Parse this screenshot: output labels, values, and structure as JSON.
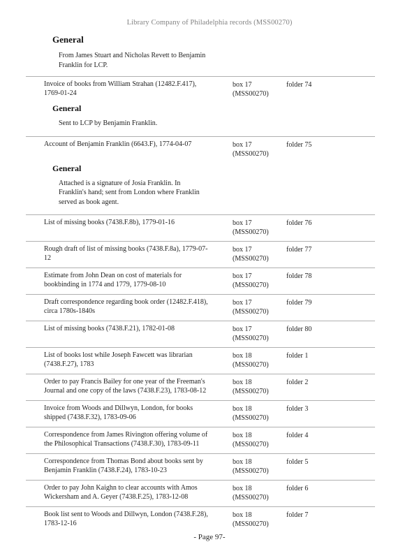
{
  "page": {
    "header": "Library Company of Philadelphia records (MSS00270)",
    "footer": "- Page 97-"
  },
  "top_section": {
    "heading": "General",
    "note": "From James Stuart and Nicholas Revett to Benjamin Franklin for LCP."
  },
  "rows": [
    {
      "title": "Invoice of books from William Strahan (12482.F.417), 1769-01-24",
      "box": "box 17",
      "box_collection": "(MSS00270)",
      "folder": "folder 74",
      "general_heading": "General",
      "general_note": "Sent to LCP by Benjamin Franklin."
    },
    {
      "title": "Account of Benjamin Franklin (6643.F), 1774-04-07",
      "box": "box 17",
      "box_collection": "(MSS00270)",
      "folder": "folder 75",
      "general_heading": "General",
      "general_note": "Attached is a signature of Josia Franklin. In Franklin's hand; sent from London where Franklin served as book agent."
    },
    {
      "title": "List of missing books (7438.F.8b), 1779-01-16",
      "box": "box 17",
      "box_collection": "(MSS00270)",
      "folder": "folder 76"
    },
    {
      "title": "Rough draft of list of missing books (7438.F.8a), 1779-07-12",
      "box": "box 17",
      "box_collection": "(MSS00270)",
      "folder": "folder 77"
    },
    {
      "title": "Estimate from John Dean on cost of materials for bookbinding in 1774 and 1779, 1779-08-10",
      "box": "box 17",
      "box_collection": "(MSS00270)",
      "folder": "folder 78"
    },
    {
      "title": "Draft correspondence regarding book order (12482.F.418), circa 1780s-1840s",
      "box": "box 17",
      "box_collection": "(MSS00270)",
      "folder": "folder 79"
    },
    {
      "title": "List of missing books (7438.F.21), 1782-01-08",
      "box": "box 17",
      "box_collection": "(MSS00270)",
      "folder": "folder 80"
    },
    {
      "title": "List of books lost while Joseph Fawcett was librarian (7438.F.27), 1783",
      "box": "box 18",
      "box_collection": "(MSS00270)",
      "folder": "folder 1"
    },
    {
      "title": "Order to pay Francis Bailey for one year of the Freeman's Journal and one copy of the laws (7438.F.23), 1783-08-12",
      "box": "box 18",
      "box_collection": "(MSS00270)",
      "folder": "folder 2"
    },
    {
      "title": "Invoice from Woods and Dillwyn, London, for books shipped (7438.F.32), 1783-09-06",
      "box": "box 18",
      "box_collection": "(MSS00270)",
      "folder": "folder 3"
    },
    {
      "title": "Correspondence from James Rivington offering volume of the Philosophical Transactions (7438.F.30), 1783-09-11",
      "box": "box 18",
      "box_collection": "(MSS00270)",
      "folder": "folder 4"
    },
    {
      "title": "Correspondence from Thomas Bond about books sent by Benjamin Franklin (7438.F.24), 1783-10-23",
      "box": "box 18",
      "box_collection": "(MSS00270)",
      "folder": "folder 5"
    },
    {
      "title": "Order to pay John Kaighn to clear accounts with Amos Wickersham and A. Geyer (7438.F.25), 1783-12-08",
      "box": "box 18",
      "box_collection": "(MSS00270)",
      "folder": "folder 6"
    },
    {
      "title": "Book list sent to Woods and Dillwyn, London (7438.F.28), 1783-12-16",
      "box": "box 18",
      "box_collection": "(MSS00270)",
      "folder": "folder 7"
    }
  ]
}
